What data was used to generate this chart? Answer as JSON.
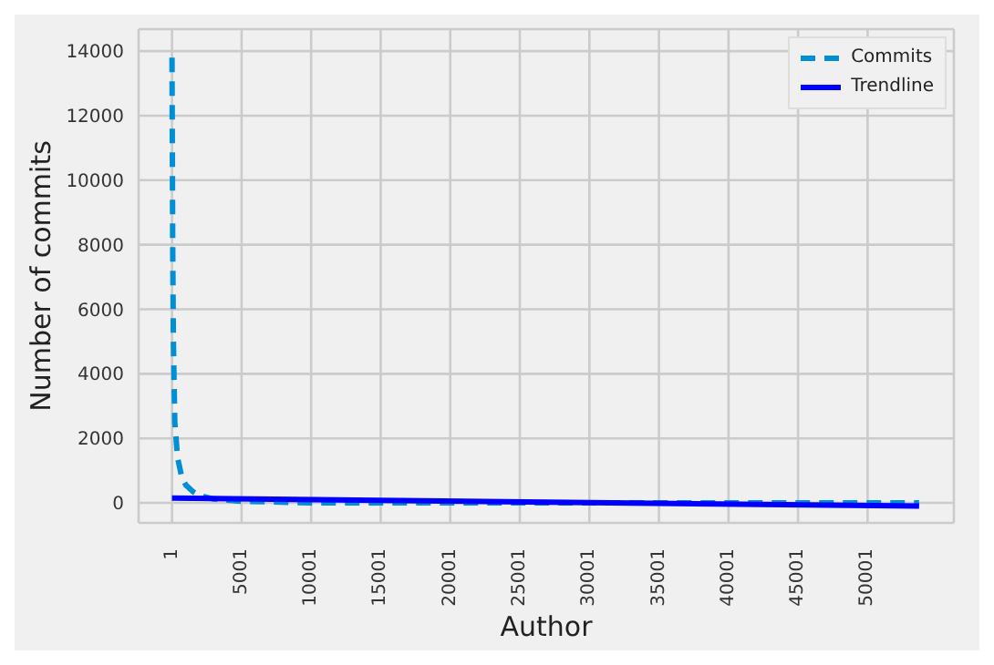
{
  "chart_data": {
    "type": "line",
    "xlabel": "Author",
    "ylabel": "Number of commits",
    "xlim": [
      -2400,
      56200
    ],
    "xticks": [
      1,
      5001,
      10001,
      15001,
      20001,
      25001,
      30001,
      35001,
      40001,
      45001,
      50001
    ],
    "ylim": [
      -620,
      14680
    ],
    "yticks": [
      0,
      2000,
      4000,
      6000,
      8000,
      10000,
      12000,
      14000
    ],
    "grid": true,
    "legend": "top right",
    "marker": "none",
    "series": [
      {
        "name": "Commits",
        "color": "#008fd5",
        "line_style": "dashed",
        "x": [
          1,
          50,
          100,
          200,
          400,
          700,
          1000,
          1500,
          2000,
          3000,
          5000,
          10000,
          20000,
          30000,
          40000,
          53700
        ],
        "values": [
          13800,
          8000,
          5000,
          2500,
          1400,
          800,
          550,
          350,
          230,
          120,
          50,
          0,
          0,
          0,
          0,
          0
        ]
      },
      {
        "name": "Trendline",
        "color": "#0000ff",
        "line_style": "solid",
        "x": [
          1,
          53700
        ],
        "values": [
          150,
          -100
        ]
      }
    ]
  }
}
